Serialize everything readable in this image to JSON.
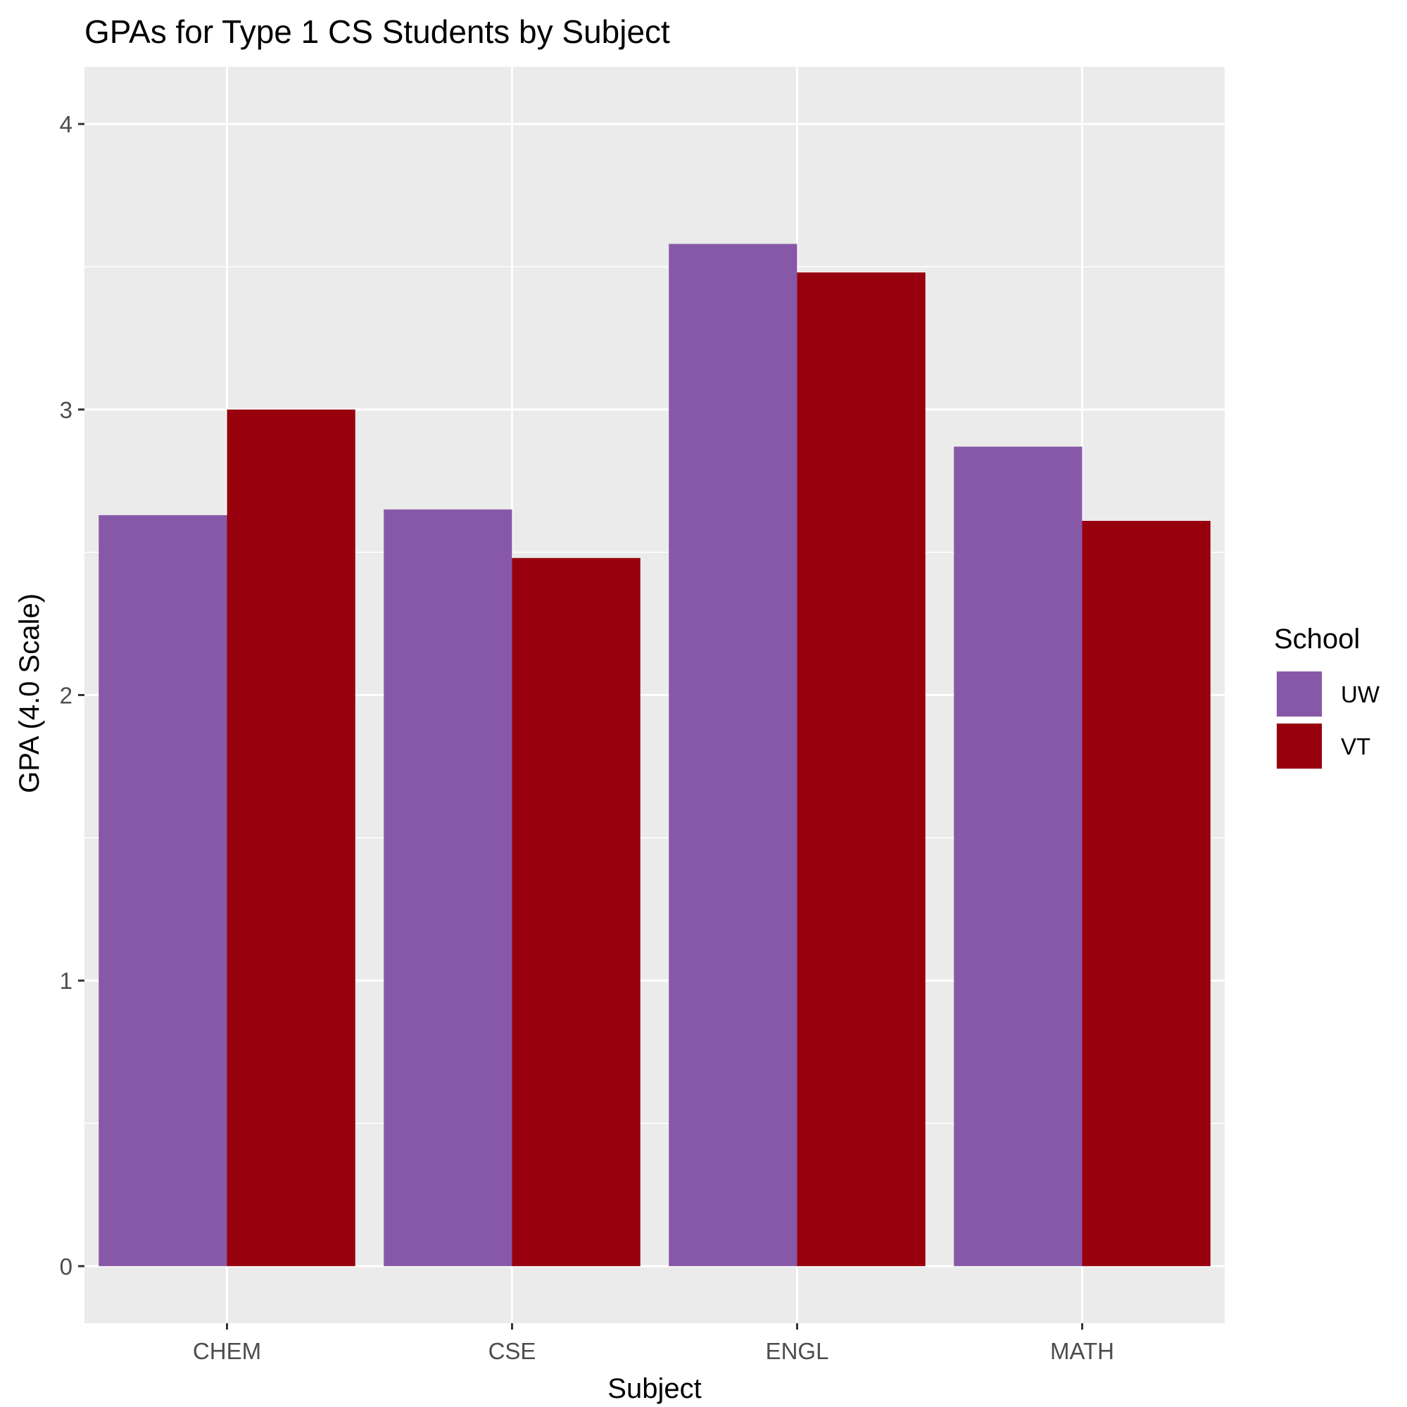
{
  "chart_data": {
    "type": "bar",
    "title": "GPAs for Type 1 CS Students by Subject",
    "xlabel": "Subject",
    "ylabel": "GPA (4.0 Scale)",
    "categories": [
      "CHEM",
      "CSE",
      "ENGL",
      "MATH"
    ],
    "series": [
      {
        "name": "UW",
        "color": "#8858a8",
        "values": [
          2.63,
          2.65,
          3.58,
          2.87
        ]
      },
      {
        "name": "VT",
        "color": "#98000e",
        "values": [
          3.0,
          2.48,
          3.48,
          2.61
        ]
      }
    ],
    "ylim": [
      -0.2,
      4.2
    ],
    "yticks": [
      0,
      1,
      2,
      3,
      4
    ],
    "grid": true,
    "panel_background": "#ebebeb",
    "legend": {
      "title": "School",
      "position": "right"
    }
  }
}
